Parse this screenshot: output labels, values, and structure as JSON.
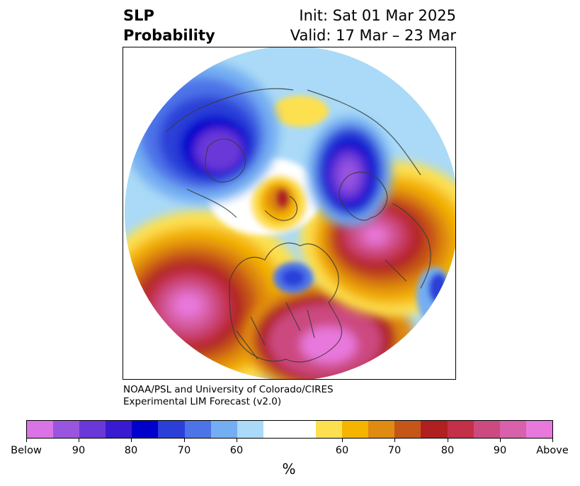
{
  "header": {
    "title_line1": "SLP",
    "title_line2": "Probability",
    "init_text": "Init: Sat 01 Mar 2025",
    "valid_text": "Valid: 17 Mar – 23 Mar"
  },
  "credit": {
    "line1": "NOAA/PSL and University of Colorado/CIRES",
    "line2": "Experimental LIM Forecast (v2.0)"
  },
  "colorbar": {
    "colors": [
      "#d973e6",
      "#9a55e0",
      "#6a38d8",
      "#3a1ad0",
      "#0000cc",
      "#2a3fd8",
      "#4d73e8",
      "#74aef2",
      "#aadaf7",
      "#ffffff",
      "#ffffff",
      "#fde050",
      "#f4b400",
      "#df8a10",
      "#c65518",
      "#b02020",
      "#c43048",
      "#cc4a80",
      "#d960aa",
      "#e878dc"
    ],
    "tick_labels": [
      "Below",
      "90",
      "80",
      "70",
      "60",
      "60",
      "70",
      "80",
      "90",
      "Above"
    ],
    "units_label": "%"
  },
  "map": {
    "projection": "north-polar-stereographic",
    "anomaly_regions": [
      {
        "area": "Western North America / Eastern Pacific",
        "sign": "above",
        "peak_percent": "Above"
      },
      {
        "area": "Eastern North America",
        "sign": "above",
        "peak_percent": "90"
      },
      {
        "area": "Northwest Europe / North Atlantic",
        "sign": "above",
        "peak_percent": "90"
      },
      {
        "area": "Central Siberia",
        "sign": "below",
        "peak_percent": "Below"
      },
      {
        "area": "Western Russia",
        "sign": "below",
        "peak_percent": "Below"
      },
      {
        "area": "Hudson Bay",
        "sign": "below",
        "peak_percent": "70"
      },
      {
        "area": "Arctic Ocean",
        "sign": "above",
        "peak_percent": "80"
      }
    ]
  }
}
